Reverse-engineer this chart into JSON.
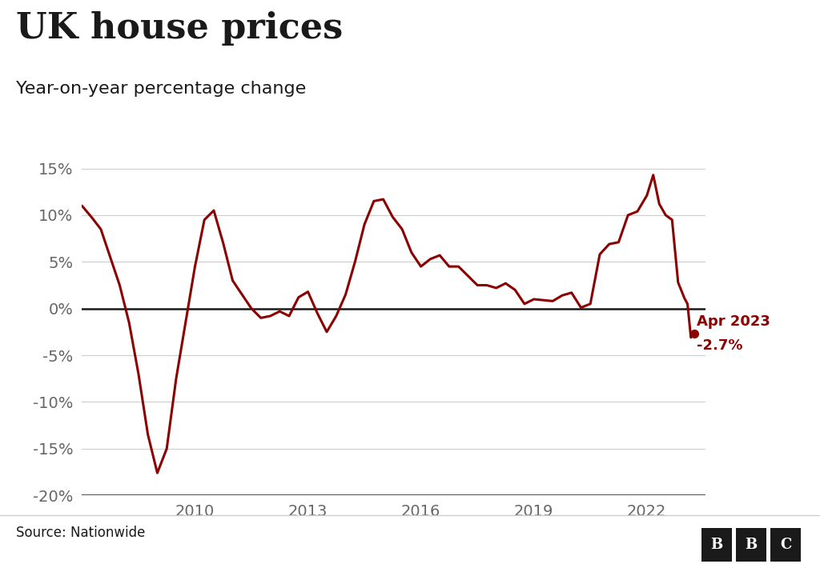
{
  "title": "UK house prices",
  "subtitle": "Year-on-year percentage change",
  "source": "Source: Nationwide",
  "line_color": "#8B0000",
  "zero_line_color": "#1a1a1a",
  "grid_color": "#cccccc",
  "background_color": "#ffffff",
  "annotation_line1": "Apr 2023",
  "annotation_line2": "-2.7%",
  "annotation_color": "#8B0000",
  "ylim": [
    -20,
    17
  ],
  "yticks": [
    -20,
    -15,
    -10,
    -5,
    0,
    5,
    10,
    15
  ],
  "ytick_labels": [
    "-20%",
    "-15%",
    "-10%",
    "-5%",
    "0%",
    "5%",
    "10%",
    "15%"
  ],
  "xticks": [
    2010,
    2013,
    2016,
    2019,
    2022
  ],
  "xlim_left": 2007.0,
  "xlim_right": 2023.55,
  "data": [
    [
      2007.0,
      11.0
    ],
    [
      2007.25,
      9.8
    ],
    [
      2007.5,
      8.5
    ],
    [
      2007.75,
      5.5
    ],
    [
      2008.0,
      2.5
    ],
    [
      2008.25,
      -1.5
    ],
    [
      2008.5,
      -7.0
    ],
    [
      2008.75,
      -13.5
    ],
    [
      2009.0,
      -17.6
    ],
    [
      2009.25,
      -15.0
    ],
    [
      2009.5,
      -7.5
    ],
    [
      2009.75,
      -1.5
    ],
    [
      2010.0,
      4.5
    ],
    [
      2010.25,
      9.5
    ],
    [
      2010.5,
      10.5
    ],
    [
      2010.75,
      7.0
    ],
    [
      2011.0,
      3.0
    ],
    [
      2011.25,
      1.5
    ],
    [
      2011.5,
      0.0
    ],
    [
      2011.75,
      -1.0
    ],
    [
      2012.0,
      -0.8
    ],
    [
      2012.25,
      -0.3
    ],
    [
      2012.5,
      -0.8
    ],
    [
      2012.75,
      1.2
    ],
    [
      2013.0,
      1.8
    ],
    [
      2013.25,
      -0.5
    ],
    [
      2013.5,
      -2.5
    ],
    [
      2013.75,
      -0.8
    ],
    [
      2014.0,
      1.5
    ],
    [
      2014.25,
      5.0
    ],
    [
      2014.5,
      9.0
    ],
    [
      2014.75,
      11.5
    ],
    [
      2015.0,
      11.7
    ],
    [
      2015.25,
      9.8
    ],
    [
      2015.5,
      8.5
    ],
    [
      2015.75,
      6.0
    ],
    [
      2016.0,
      4.5
    ],
    [
      2016.25,
      5.3
    ],
    [
      2016.5,
      5.7
    ],
    [
      2016.75,
      4.5
    ],
    [
      2017.0,
      4.5
    ],
    [
      2017.25,
      3.5
    ],
    [
      2017.5,
      2.5
    ],
    [
      2017.75,
      2.5
    ],
    [
      2018.0,
      2.2
    ],
    [
      2018.25,
      2.7
    ],
    [
      2018.5,
      2.0
    ],
    [
      2018.75,
      0.5
    ],
    [
      2019.0,
      1.0
    ],
    [
      2019.25,
      0.9
    ],
    [
      2019.5,
      0.8
    ],
    [
      2019.75,
      1.4
    ],
    [
      2020.0,
      1.7
    ],
    [
      2020.25,
      0.1
    ],
    [
      2020.5,
      0.5
    ],
    [
      2020.75,
      5.8
    ],
    [
      2021.0,
      6.9
    ],
    [
      2021.25,
      7.1
    ],
    [
      2021.5,
      10.0
    ],
    [
      2021.75,
      10.4
    ],
    [
      2022.0,
      12.1
    ],
    [
      2022.17,
      14.3
    ],
    [
      2022.33,
      11.2
    ],
    [
      2022.5,
      10.0
    ],
    [
      2022.67,
      9.5
    ],
    [
      2022.83,
      2.8
    ],
    [
      2023.0,
      1.1
    ],
    [
      2023.08,
      0.5
    ],
    [
      2023.17,
      -3.1
    ],
    [
      2023.25,
      -2.7
    ]
  ]
}
